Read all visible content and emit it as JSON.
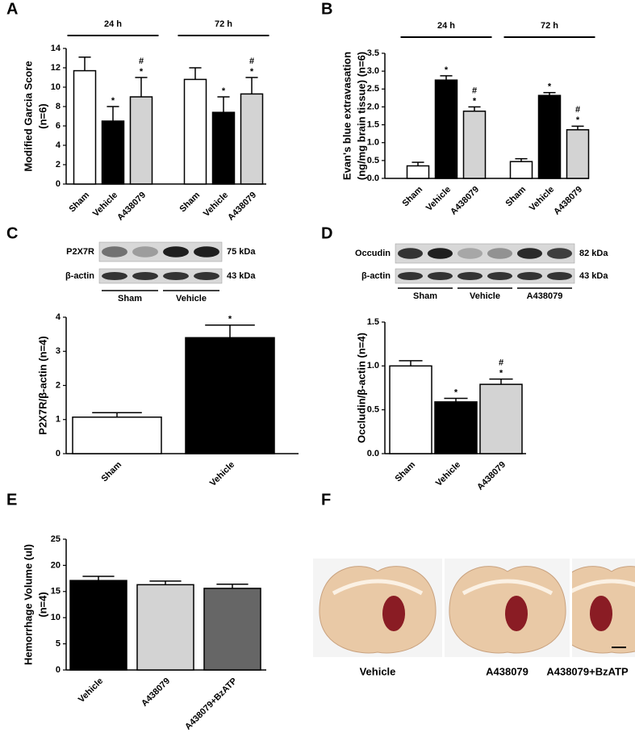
{
  "chart_data": [
    {
      "panel": "A",
      "type": "bar",
      "ylabel": [
        "Modified Garcia Score",
        "(n=6)"
      ],
      "ylim": [
        0,
        14
      ],
      "yticks": [
        0,
        2,
        4,
        6,
        8,
        10,
        12,
        14
      ],
      "groups": [
        {
          "name": "24 h",
          "bars": [
            {
              "label": "Sham",
              "value": 11.7,
              "error": 1.4,
              "color": "#ffffff"
            },
            {
              "label": "Vehicle",
              "value": 6.5,
              "error": 1.5,
              "color": "#000000",
              "marks": [
                "*"
              ]
            },
            {
              "label": "A438079",
              "value": 9.0,
              "error": 2.0,
              "color": "#d3d3d3",
              "marks": [
                "#",
                "*"
              ]
            }
          ]
        },
        {
          "name": "72 h",
          "bars": [
            {
              "label": "Sham",
              "value": 10.8,
              "error": 1.2,
              "color": "#ffffff"
            },
            {
              "label": "Vehicle",
              "value": 7.4,
              "error": 1.6,
              "color": "#000000",
              "marks": [
                "*"
              ]
            },
            {
              "label": "A438079",
              "value": 9.3,
              "error": 1.7,
              "color": "#d3d3d3",
              "marks": [
                "#",
                "*"
              ]
            }
          ]
        }
      ]
    },
    {
      "panel": "B",
      "type": "bar",
      "ylabel": [
        "Evan's blue extravasation",
        "(ng/mg brain tissue) (n=6)"
      ],
      "ylim": [
        0,
        3.5
      ],
      "yticks": [
        {
          "value": 0,
          "label": "0.0"
        },
        0.5,
        {
          "value": 1,
          "label": "1.0"
        },
        1.5,
        {
          "value": 2,
          "label": "2.0"
        },
        2.5,
        {
          "value": 3,
          "label": "3.0"
        },
        3.5
      ],
      "groups": [
        {
          "name": "24 h",
          "bars": [
            {
              "label": "Sham",
              "value": 0.35,
              "error": 0.1,
              "color": "#ffffff"
            },
            {
              "label": "Vehicle",
              "value": 2.75,
              "error": 0.12,
              "color": "#000000",
              "marks": [
                "*"
              ]
            },
            {
              "label": "A438079",
              "value": 1.88,
              "error": 0.12,
              "color": "#d3d3d3",
              "marks": [
                "#",
                "*"
              ]
            }
          ]
        },
        {
          "name": "72 h",
          "bars": [
            {
              "label": "Sham",
              "value": 0.47,
              "error": 0.08,
              "color": "#ffffff"
            },
            {
              "label": "Vehicle",
              "value": 2.32,
              "error": 0.08,
              "color": "#000000",
              "marks": [
                "*"
              ]
            },
            {
              "label": "A438079",
              "value": 1.36,
              "error": 0.1,
              "color": "#d3d3d3",
              "marks": [
                "#",
                "*"
              ]
            }
          ]
        }
      ]
    },
    {
      "panel": "C",
      "type": "bar",
      "ylabel": [
        "P2X7R/β-actin (n=4)"
      ],
      "ylim": [
        0,
        4
      ],
      "yticks": [
        0,
        1,
        2,
        3,
        4
      ],
      "groups": [
        {
          "bars": [
            {
              "label": "Sham",
              "value": 1.07,
              "error": 0.13,
              "color": "#ffffff"
            },
            {
              "label": "Vehicle",
              "value": 3.4,
              "error": 0.37,
              "color": "#000000",
              "marks": [
                "*"
              ]
            }
          ]
        }
      ]
    },
    {
      "panel": "D",
      "type": "bar",
      "ylabel": [
        "Occludin/β-actin (n=4)"
      ],
      "ylim": [
        0,
        1.5
      ],
      "yticks": [
        {
          "value": 0,
          "label": "0.0"
        },
        0.5,
        {
          "value": 1,
          "label": "1.0"
        },
        1.5
      ],
      "groups": [
        {
          "bars": [
            {
              "label": "Sham",
              "value": 1.0,
              "error": 0.06,
              "color": "#ffffff"
            },
            {
              "label": "Vehicle",
              "value": 0.59,
              "error": 0.04,
              "color": "#000000",
              "marks": [
                "*"
              ]
            },
            {
              "label": "A438079",
              "value": 0.79,
              "error": 0.06,
              "color": "#d3d3d3",
              "marks": [
                "#",
                "*"
              ]
            }
          ]
        }
      ]
    },
    {
      "panel": "E",
      "type": "bar",
      "ylabel": [
        "Hemorrhage Volume (ul)",
        "(n=4)"
      ],
      "ylim": [
        0,
        25
      ],
      "yticks": [
        0,
        5,
        10,
        15,
        20,
        25
      ],
      "groups": [
        {
          "bars": [
            {
              "label": "Vehicle",
              "value": 17.1,
              "error": 0.8,
              "color": "#000000"
            },
            {
              "label": "A438079",
              "value": 16.3,
              "error": 0.7,
              "color": "#d3d3d3"
            },
            {
              "label": "A438079+BzATP",
              "value": 15.6,
              "error": 0.8,
              "color": "#666666"
            }
          ]
        }
      ]
    }
  ],
  "blots": [
    {
      "rows": [
        {
          "label": "P2X7R",
          "kda": "75 kDa"
        },
        {
          "label": "β-actin",
          "kda": "43 kDa"
        }
      ],
      "groups": [
        "Sham",
        "Vehicle"
      ]
    },
    {
      "rows": [
        {
          "label": "Occudin",
          "kda": "82 kDa"
        },
        {
          "label": "β-actin",
          "kda": "43 kDa"
        }
      ],
      "groups": [
        "Sham",
        "Vehicle",
        "A438079"
      ]
    }
  ],
  "photos": {
    "panel": "F",
    "captions": [
      "Vehicle",
      "A438079",
      "A438079+BzATP"
    ]
  }
}
